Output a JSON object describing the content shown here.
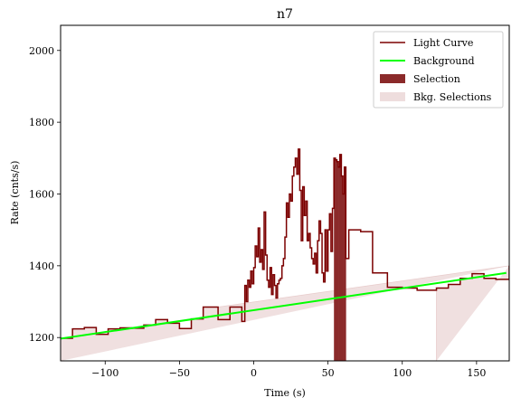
{
  "chart_data": {
    "type": "line",
    "title": "n7",
    "xlabel": "Time (s)",
    "ylabel": "Rate (cnts/s)",
    "xlim": [
      -130,
      172
    ],
    "ylim": [
      1135,
      2070
    ],
    "xticks": [
      -100,
      -50,
      0,
      50,
      100,
      150
    ],
    "yticks": [
      1200,
      1400,
      1600,
      1800,
      2000
    ],
    "xtick_labels": [
      "−100",
      "−50",
      "0",
      "50",
      "100",
      "150"
    ],
    "ytick_labels": [
      "1200",
      "1400",
      "1600",
      "1800",
      "2000"
    ],
    "legend": {
      "position": "top-right",
      "items": [
        {
          "label": "Light Curve",
          "kind": "line",
          "color": "#7b0000"
        },
        {
          "label": "Background",
          "kind": "line",
          "color": "#00ff00"
        },
        {
          "label": "Selection",
          "kind": "patch",
          "color": "#8b2a2a"
        },
        {
          "label": "Bkg. Selections",
          "kind": "patch",
          "color": "#eedddd"
        }
      ]
    },
    "colors": {
      "light_curve": "#7b0000",
      "background": "#00ff00",
      "selection": "#8b2a2a",
      "bkg_selection": "#f0e0e0"
    },
    "background_fit": {
      "x": [
        -130,
        170
      ],
      "y": [
        1197,
        1380
      ]
    },
    "selection": [
      54,
      62
    ],
    "bkg_selections": [
      [
        -130,
        -24
      ],
      [
        123,
        172
      ]
    ],
    "light_curve": {
      "edges": [
        -130,
        -122,
        -114,
        -106,
        -98,
        -90,
        -82,
        -74,
        -66,
        -58,
        -50,
        -42,
        -34,
        -24,
        -16,
        -8,
        -6,
        -5,
        -4,
        -3,
        -2,
        -1,
        0,
        1,
        2,
        3,
        4,
        5,
        6,
        7,
        8,
        9,
        10,
        11,
        12,
        13,
        14,
        15,
        16,
        17,
        18,
        19,
        20,
        21,
        22,
        23,
        24,
        25,
        26,
        27,
        28,
        29,
        30,
        31,
        32,
        33,
        34,
        35,
        36,
        37,
        38,
        39,
        40,
        41,
        42,
        43,
        44,
        45,
        46,
        47,
        48,
        49,
        50,
        51,
        52,
        53,
        54,
        55,
        56,
        57,
        58,
        59,
        60,
        61,
        62,
        64,
        72,
        80,
        90,
        100,
        110,
        123,
        131,
        139,
        147,
        155,
        163,
        172
      ],
      "values": [
        1198,
        1224,
        1228,
        1209,
        1224,
        1227,
        1226,
        1235,
        1250,
        1240,
        1225,
        1252,
        1285,
        1250,
        1285,
        1245,
        1345,
        1300,
        1360,
        1340,
        1385,
        1350,
        1395,
        1455,
        1425,
        1505,
        1410,
        1445,
        1390,
        1550,
        1430,
        1360,
        1340,
        1395,
        1320,
        1375,
        1345,
        1310,
        1350,
        1360,
        1365,
        1400,
        1420,
        1480,
        1575,
        1535,
        1600,
        1580,
        1650,
        1675,
        1700,
        1655,
        1725,
        1610,
        1470,
        1620,
        1540,
        1580,
        1470,
        1490,
        1450,
        1420,
        1405,
        1435,
        1380,
        1470,
        1525,
        1490,
        1380,
        1355,
        1500,
        1385,
        1500,
        1545,
        1440,
        1560,
        1700,
        1695,
        1690,
        1675,
        1710,
        1650,
        1600,
        1675,
        1420,
        1500,
        1495,
        1380,
        1340,
        1338,
        1332,
        1338,
        1348,
        1365,
        1378,
        1365,
        1362,
        1400
      ]
    }
  }
}
